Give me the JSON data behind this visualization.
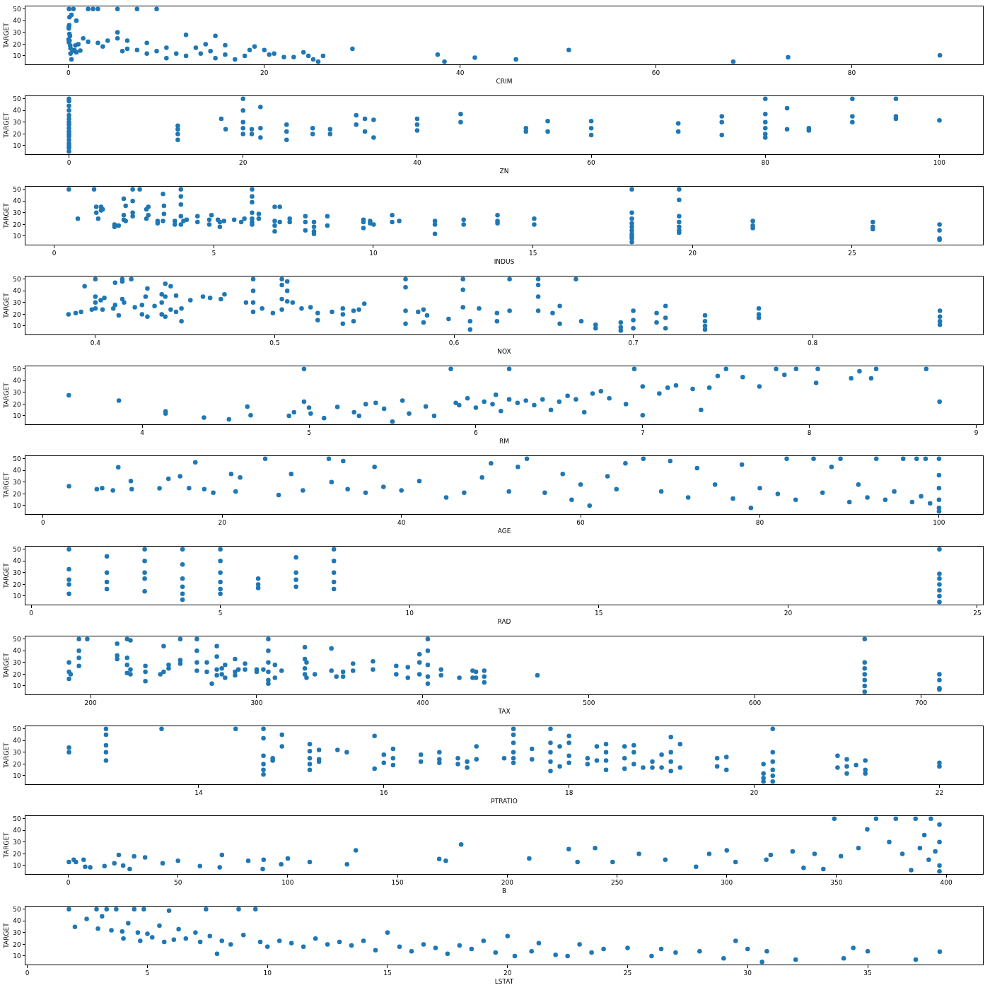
{
  "chart_data": [
    {
      "type": "scatter",
      "xlabel": "CRIM",
      "ylabel": "TARGET",
      "color": "#1f77b4",
      "marker": "circle",
      "xlim": [
        -4.4,
        93.4
      ],
      "xticks": [
        0,
        20,
        40,
        60,
        80
      ],
      "ylim": [
        2.75,
        52.25
      ],
      "yticks": [
        10,
        20,
        30,
        40,
        50
      ],
      "x": [
        0.01,
        0.03,
        0.03,
        0.03,
        0.07,
        0.09,
        0.1,
        0.15,
        0.2,
        0.17,
        0.6,
        0.7,
        0.05,
        0.5,
        0.3,
        0.1,
        0.8,
        0.2,
        0.4,
        0.8,
        0.3,
        1.2,
        1,
        1.5,
        2,
        2.5,
        3,
        2,
        3,
        3.5,
        4,
        5,
        5,
        5,
        5.5,
        6,
        6,
        7,
        7,
        8,
        8,
        9,
        9,
        10,
        10,
        11,
        12,
        12,
        13,
        13.5,
        14,
        14.5,
        15,
        15,
        16,
        16,
        17,
        18,
        18.5,
        19,
        20,
        20.5,
        21,
        22,
        23,
        24,
        24.5,
        25,
        25.5,
        26,
        29,
        37.7,
        38.4,
        41.5,
        45.7,
        51.1,
        67.9,
        73.5,
        89
      ],
      "values": [
        24,
        21.6,
        34.7,
        33.4,
        36.2,
        28.7,
        22.9,
        27.1,
        16.5,
        18.9,
        15,
        18.9,
        50,
        50,
        45,
        43,
        40,
        12,
        14,
        13,
        7,
        14.5,
        20,
        25,
        50,
        50,
        50,
        22,
        21,
        18,
        23,
        30,
        25,
        50,
        14,
        16,
        23,
        50,
        15,
        12,
        21,
        50,
        14,
        8,
        17,
        12,
        28,
        10,
        17,
        12,
        20,
        14,
        27,
        8,
        19,
        11,
        7,
        10,
        15,
        18,
        15,
        11,
        12,
        9,
        9,
        13,
        10,
        7,
        5,
        10,
        16,
        11,
        5,
        8.5,
        7,
        15,
        5,
        8.8,
        10.4
      ]
    },
    {
      "type": "scatter",
      "xlabel": "ZN",
      "ylabel": "TARGET",
      "color": "#1f77b4",
      "marker": "circle",
      "xlim": [
        -5,
        105
      ],
      "xticks": [
        0,
        20,
        40,
        60,
        80,
        100
      ],
      "ylim": [
        2.75,
        52.25
      ],
      "yticks": [
        10,
        20,
        30,
        40,
        50
      ],
      "x": [
        0,
        0,
        0,
        0,
        0,
        0,
        0,
        0,
        0,
        0,
        0,
        0,
        0,
        0,
        0,
        0,
        0,
        12.5,
        12.5,
        12.5,
        12.5,
        17.5,
        18,
        20,
        20,
        20,
        20,
        20,
        21,
        21,
        22,
        22,
        22,
        25,
        25,
        25,
        28,
        28,
        30,
        30,
        33,
        33,
        34,
        34,
        35,
        35,
        40,
        40,
        40,
        45,
        45,
        52.5,
        52.5,
        55,
        55,
        60,
        60,
        60,
        70,
        70,
        75,
        75,
        75,
        80,
        80,
        80,
        80,
        80,
        80,
        82.5,
        82.5,
        85,
        85,
        90,
        90,
        90,
        95,
        95,
        95,
        100
      ],
      "values": [
        5,
        8,
        10,
        12,
        15,
        18,
        20,
        22,
        25,
        28,
        30,
        33,
        36,
        40,
        44,
        48,
        50,
        15,
        20,
        24,
        27,
        33,
        24,
        20,
        25,
        30,
        40,
        50,
        20,
        24,
        17,
        25,
        43,
        15,
        22,
        28,
        20,
        25,
        20,
        24,
        28,
        36,
        22,
        33,
        17,
        32,
        23,
        28,
        33,
        30,
        37,
        22,
        25,
        22,
        31,
        19,
        25,
        31,
        22,
        29,
        19,
        30,
        35,
        17,
        20,
        25,
        30,
        37,
        50,
        24,
        42,
        23,
        25,
        30,
        35,
        50,
        33,
        35,
        50,
        31.6
      ]
    },
    {
      "type": "scatter",
      "xlabel": "INDUS",
      "ylabel": "TARGET",
      "color": "#1f77b4",
      "marker": "circle",
      "xlim": [
        -0.9,
        29.1
      ],
      "xticks": [
        0,
        5,
        10,
        15,
        20,
        25
      ],
      "ylim": [
        2.75,
        52.25
      ],
      "yticks": [
        10,
        20,
        30,
        40,
        50
      ],
      "x": [
        0.46,
        0.74,
        1.25,
        1.32,
        1.32,
        1.38,
        1.47,
        1.47,
        1.52,
        1.89,
        1.89,
        2.02,
        2.18,
        2.18,
        2.18,
        2.24,
        2.24,
        2.46,
        2.46,
        2.46,
        2.46,
        2.68,
        2.89,
        2.89,
        2.95,
        2.95,
        3.24,
        3.24,
        3.41,
        3.41,
        3.44,
        3.44,
        3.78,
        3.78,
        3.97,
        3.97,
        3.97,
        3.97,
        3.97,
        4.05,
        4.15,
        4.49,
        4.49,
        4.86,
        4.86,
        4.93,
        5.13,
        5.19,
        5.19,
        5.32,
        5.64,
        5.86,
        5.96,
        6.2,
        6.2,
        6.2,
        6.2,
        6.2,
        6.2,
        6.2,
        6.41,
        6.41,
        6.91,
        6.91,
        6.91,
        6.91,
        7.07,
        7.07,
        7.38,
        7.38,
        7.87,
        7.87,
        7.87,
        8.14,
        8.14,
        8.14,
        8.14,
        8.56,
        8.56,
        9.69,
        9.69,
        9.69,
        9.9,
        9.9,
        10.01,
        10.59,
        10.59,
        10.81,
        11.93,
        11.93,
        11.93,
        12.83,
        12.83,
        13.89,
        13.89,
        13.89,
        15.04,
        15.04,
        18.1,
        18.1,
        18.1,
        18.1,
        18.1,
        18.1,
        18.1,
        18.1,
        18.1,
        18.1,
        19.58,
        19.58,
        19.58,
        19.58,
        19.58,
        19.58,
        19.58,
        21.89,
        21.89,
        21.89,
        25.65,
        25.65,
        25.65,
        27.74,
        27.74,
        27.74,
        27.74
      ],
      "values": [
        50,
        25,
        50,
        35,
        30,
        25,
        32,
        35,
        33,
        20,
        18,
        19,
        42,
        28,
        24,
        36,
        23,
        50,
        40,
        30,
        27,
        50,
        33,
        25,
        28,
        35,
        21,
        23,
        46,
        23,
        36,
        29,
        20,
        23,
        50,
        44,
        37,
        27,
        20,
        23,
        24,
        27,
        22,
        24,
        20,
        28,
        24,
        22,
        18,
        23,
        24,
        22,
        25,
        50,
        44,
        39,
        30,
        25,
        22,
        20,
        25,
        29,
        35,
        23,
        19,
        14,
        35,
        22,
        22,
        25,
        27,
        22,
        15,
        22,
        18,
        14,
        12,
        27,
        19,
        24,
        22,
        17,
        21,
        23,
        20,
        28,
        22,
        23,
        23,
        20,
        12,
        24,
        20,
        28,
        23,
        21,
        25,
        20,
        5,
        8,
        10,
        12,
        15,
        18,
        21,
        25,
        30,
        50,
        50,
        41,
        27,
        22,
        18,
        15,
        13,
        23,
        19,
        17,
        22,
        18,
        16,
        20,
        15,
        8,
        7
      ]
    },
    {
      "type": "scatter",
      "xlabel": "NOX",
      "ylabel": "TARGET",
      "color": "#1f77b4",
      "marker": "circle",
      "xlim": [
        0.361,
        0.895
      ],
      "xticks": [
        0.4,
        0.5,
        0.6,
        0.7,
        0.8
      ],
      "ylim": [
        2.75,
        52.25
      ],
      "yticks": [
        10,
        20,
        30,
        40,
        50
      ],
      "x": [
        0.385,
        0.389,
        0.392,
        0.394,
        0.398,
        0.4,
        0.4,
        0.4,
        0.4,
        0.403,
        0.404,
        0.405,
        0.41,
        0.411,
        0.411,
        0.413,
        0.415,
        0.415,
        0.415,
        0.416,
        0.42,
        0.422,
        0.426,
        0.426,
        0.428,
        0.429,
        0.429,
        0.433,
        0.437,
        0.437,
        0.437,
        0.439,
        0.439,
        0.439,
        0.442,
        0.442,
        0.445,
        0.445,
        0.448,
        0.448,
        0.453,
        0.46,
        0.464,
        0.47,
        0.472,
        0.484,
        0.488,
        0.488,
        0.488,
        0.488,
        0.493,
        0.499,
        0.504,
        0.504,
        0.504,
        0.504,
        0.507,
        0.507,
        0.507,
        0.51,
        0.515,
        0.52,
        0.524,
        0.524,
        0.532,
        0.538,
        0.538,
        0.538,
        0.544,
        0.544,
        0.547,
        0.55,
        0.573,
        0.573,
        0.573,
        0.573,
        0.58,
        0.583,
        0.583,
        0.585,
        0.597,
        0.605,
        0.605,
        0.605,
        0.609,
        0.609,
        0.614,
        0.624,
        0.624,
        0.631,
        0.631,
        0.647,
        0.647,
        0.647,
        0.647,
        0.655,
        0.659,
        0.659,
        0.668,
        0.671,
        0.679,
        0.679,
        0.693,
        0.693,
        0.693,
        0.7,
        0.7,
        0.7,
        0.713,
        0.713,
        0.718,
        0.718,
        0.718,
        0.74,
        0.74,
        0.74,
        0.74,
        0.77,
        0.77,
        0.77,
        0.871,
        0.871,
        0.871,
        0.871
      ],
      "values": [
        20,
        21,
        22,
        44,
        24,
        50,
        35,
        30,
        25,
        32,
        24,
        34,
        25,
        47,
        28,
        19,
        50,
        48,
        33,
        30,
        50,
        26,
        28,
        20,
        35,
        42,
        18,
        27,
        37,
        30,
        20,
        46,
        35,
        18,
        44,
        24,
        36,
        22,
        25,
        14,
        32,
        35,
        34,
        33,
        37,
        30,
        50,
        40,
        30,
        22,
        25,
        21,
        50,
        45,
        33,
        24,
        48,
        40,
        31,
        30,
        25,
        26,
        21,
        15,
        22,
        25,
        20,
        12,
        23,
        14,
        24,
        29,
        50,
        43,
        23,
        12,
        22,
        24,
        13,
        19,
        16,
        50,
        41,
        26,
        7,
        14,
        25,
        21,
        14,
        50,
        23,
        50,
        45,
        35,
        23,
        21,
        27,
        12,
        50,
        14,
        11,
        8,
        13,
        9,
        6,
        23,
        15,
        8,
        21,
        13,
        27,
        17,
        8,
        19,
        14,
        10,
        7,
        25,
        20,
        17,
        23,
        18,
        14,
        11
      ]
    },
    {
      "type": "scatter",
      "xlabel": "RM",
      "ylabel": "TARGET",
      "color": "#1f77b4",
      "marker": "circle",
      "xlim": [
        3.3,
        9.04
      ],
      "xticks": [
        4,
        5,
        6,
        7,
        8,
        9
      ],
      "ylim": [
        2.75,
        52.25
      ],
      "yticks": [
        10,
        20,
        30,
        40,
        50
      ],
      "x": [
        3.56,
        3.86,
        4.14,
        4.14,
        4.37,
        4.52,
        4.63,
        4.65,
        4.88,
        4.91,
        4.97,
        4.97,
        5,
        5.01,
        5.09,
        5.17,
        5.27,
        5.3,
        5.34,
        5.4,
        5.45,
        5.5,
        5.56,
        5.6,
        5.7,
        5.75,
        5.85,
        5.88,
        5.9,
        5.95,
        6,
        6.05,
        6.1,
        6.12,
        6.15,
        6.2,
        6.2,
        6.25,
        6.3,
        6.35,
        6.4,
        6.45,
        6.5,
        6.55,
        6.6,
        6.65,
        6.7,
        6.75,
        6.8,
        6.9,
        6.95,
        7,
        7,
        7.1,
        7.15,
        7.2,
        7.3,
        7.35,
        7.4,
        7.45,
        7.5,
        7.6,
        7.7,
        7.8,
        7.85,
        7.92,
        8.04,
        8.05,
        8.25,
        8.3,
        8.37,
        8.4,
        8.7,
        8.78
      ],
      "values": [
        27.5,
        23,
        13.8,
        12,
        8.5,
        7,
        17.9,
        10.5,
        10,
        13,
        50,
        22,
        17,
        12,
        8,
        17.5,
        13,
        10,
        20,
        21,
        16,
        5,
        23,
        12,
        18,
        10,
        50,
        21,
        19,
        25,
        17,
        22,
        20,
        28,
        14,
        50,
        24,
        21,
        23,
        19,
        24,
        15,
        22,
        27,
        24,
        13,
        29,
        31,
        25,
        20,
        50,
        35,
        10.5,
        29,
        34,
        36,
        33,
        15,
        34,
        44,
        50,
        43,
        35,
        50,
        45,
        50,
        38,
        50,
        42,
        48,
        42,
        50,
        50,
        22
      ]
    },
    {
      "type": "scatter",
      "xlabel": "AGE",
      "ylabel": "TARGET",
      "color": "#1f77b4",
      "marker": "circle",
      "xlim": [
        -1.96,
        104.9
      ],
      "xticks": [
        0,
        20,
        40,
        60,
        80,
        100
      ],
      "ylim": [
        2.75,
        52.25
      ],
      "yticks": [
        10,
        20,
        30,
        40,
        50
      ],
      "x": [
        2.9,
        6,
        6.6,
        7.8,
        8.4,
        9.8,
        9.9,
        13,
        14,
        15.3,
        16.3,
        17,
        18,
        19,
        21,
        21.5,
        22,
        24.8,
        26.3,
        27.7,
        29,
        31.9,
        32.2,
        33.5,
        34,
        36,
        37,
        38,
        40,
        42,
        45,
        47,
        49,
        50,
        52,
        53,
        54,
        56,
        58,
        59,
        60,
        61,
        63,
        64,
        65,
        67,
        69,
        70,
        72,
        73,
        75,
        77,
        78,
        79,
        80,
        82,
        83,
        84,
        86,
        87,
        88,
        89,
        90,
        91,
        92,
        93,
        94,
        95,
        96,
        97,
        97.5,
        98,
        98.5,
        99,
        100,
        100,
        100,
        100,
        100,
        100
      ],
      "values": [
        26.6,
        24,
        25,
        23,
        42.8,
        31,
        24,
        24.8,
        33,
        35,
        25,
        47,
        24,
        21,
        37,
        22,
        34,
        50,
        19,
        37,
        23,
        50,
        30,
        48,
        24,
        21,
        43,
        26,
        23,
        31,
        17,
        21,
        34,
        46,
        22,
        43,
        50,
        21,
        37,
        15,
        28,
        10,
        35,
        24,
        46,
        50,
        22,
        48,
        17,
        42,
        28,
        16,
        45,
        8,
        25,
        20,
        50,
        15,
        50,
        21,
        43,
        50,
        13,
        28,
        17,
        50,
        15,
        22,
        50,
        13,
        50,
        18,
        50,
        12,
        50,
        36,
        25,
        15,
        8,
        5
      ]
    },
    {
      "type": "scatter",
      "xlabel": "RAD",
      "ylabel": "TARGET",
      "color": "#1f77b4",
      "marker": "circle",
      "xlim": [
        -0.15,
        25.15
      ],
      "xticks": [
        0,
        5,
        10,
        15,
        20,
        25
      ],
      "ylim": [
        2.75,
        52.25
      ],
      "yticks": [
        10,
        20,
        30,
        40,
        50
      ],
      "x": [
        1,
        1,
        1,
        1,
        1,
        2,
        2,
        2,
        2,
        3,
        3,
        3,
        3,
        3,
        4,
        4,
        4,
        4,
        4,
        4,
        5,
        5,
        5,
        5,
        5,
        5,
        6,
        6,
        6,
        7,
        7,
        7,
        7,
        8,
        8,
        8,
        8,
        8,
        24,
        24,
        24,
        24,
        24,
        24,
        24
      ],
      "values": [
        12,
        20,
        24,
        33,
        50,
        16,
        22,
        30,
        44,
        14,
        25,
        30,
        40,
        50,
        7,
        12,
        18,
        25,
        37,
        50,
        12,
        16,
        22,
        30,
        40,
        50,
        17,
        20,
        25,
        18,
        24,
        30,
        43,
        16,
        22,
        30,
        40,
        50,
        5,
        10,
        15,
        20,
        25,
        29,
        50
      ]
    },
    {
      "type": "scatter",
      "xlabel": "TAX",
      "ylabel": "TARGET",
      "color": "#1f77b4",
      "marker": "circle",
      "xlim": [
        160.8,
        737.2
      ],
      "xticks": [
        200,
        300,
        400,
        500,
        600,
        700
      ],
      "ylim": [
        2.75,
        52.25
      ],
      "yticks": [
        10,
        20,
        30,
        40,
        50
      ],
      "x": [
        187,
        187,
        187,
        188,
        193,
        193,
        193,
        193,
        198,
        216,
        216,
        216,
        222,
        222,
        222,
        222,
        224,
        224,
        224,
        233,
        233,
        233,
        242,
        244,
        244,
        247,
        247,
        254,
        254,
        254,
        264,
        264,
        264,
        264,
        270,
        270,
        273,
        276,
        276,
        276,
        276,
        279,
        279,
        281,
        281,
        287,
        287,
        287,
        289,
        293,
        293,
        300,
        300,
        304,
        307,
        307,
        307,
        307,
        307,
        307,
        311,
        311,
        315,
        329,
        329,
        329,
        329,
        330,
        330,
        335,
        345,
        345,
        348,
        352,
        352,
        358,
        358,
        370,
        370,
        384,
        384,
        391,
        391,
        398,
        398,
        398,
        403,
        403,
        403,
        403,
        403,
        411,
        411,
        422,
        430,
        430,
        432,
        432,
        437,
        437,
        437,
        469,
        666,
        666,
        666,
        666,
        666,
        666,
        666,
        711,
        711,
        711,
        711
      ],
      "values": [
        30,
        22,
        16,
        20,
        50,
        40,
        34,
        27,
        50,
        46,
        36,
        33,
        50,
        34,
        28,
        21,
        49,
        24,
        20,
        27,
        22,
        14,
        20,
        44,
        22,
        28,
        25,
        50,
        32,
        29,
        50,
        40,
        30,
        23,
        30,
        22,
        12,
        44,
        35,
        24,
        19,
        25,
        20,
        28,
        17,
        33,
        22,
        19,
        24,
        29,
        24,
        24,
        22,
        24,
        50,
        40,
        30,
        22,
        15,
        12,
        28,
        17,
        23,
        43,
        33,
        25,
        20,
        30,
        17,
        20,
        42,
        23,
        18,
        22,
        18,
        29,
        23,
        31,
        24,
        27,
        20,
        26,
        17,
        37,
        30,
        20,
        50,
        40,
        28,
        18,
        12,
        24,
        19,
        17,
        23,
        17,
        22,
        17,
        23,
        18,
        13,
        19,
        5,
        10,
        15,
        20,
        25,
        30,
        50,
        20,
        15,
        8,
        7
      ]
    },
    {
      "type": "scatter",
      "xlabel": "PTRATIO",
      "ylabel": "TARGET",
      "color": "#1f77b4",
      "marker": "circle",
      "xlim": [
        12.13,
        22.47
      ],
      "xticks": [
        14,
        16,
        18,
        20,
        22
      ],
      "ylim": [
        2.75,
        52.25
      ],
      "yticks": [
        10,
        20,
        30,
        40,
        50
      ],
      "x": [
        12.6,
        12.6,
        13,
        13,
        13,
        13,
        13,
        13.6,
        14.4,
        14.7,
        14.7,
        14.7,
        14.7,
        14.7,
        14.7,
        14.8,
        14.8,
        14.9,
        14.9,
        15.2,
        15.2,
        15.2,
        15.2,
        15.2,
        15.3,
        15.3,
        15.3,
        15.5,
        15.6,
        15.9,
        15.9,
        16,
        16,
        16.1,
        16.1,
        16.1,
        16.4,
        16.4,
        16.6,
        16.6,
        16.6,
        16.8,
        16.8,
        16.9,
        16.9,
        17,
        17,
        17.3,
        17.4,
        17.4,
        17.4,
        17.4,
        17.4,
        17.4,
        17.6,
        17.6,
        17.8,
        17.8,
        17.8,
        17.8,
        17.8,
        17.9,
        17.9,
        18,
        18,
        18,
        18,
        18.2,
        18.2,
        18.3,
        18.3,
        18.4,
        18.4,
        18.4,
        18.4,
        18.6,
        18.6,
        18.6,
        18.7,
        18.7,
        18.7,
        18.8,
        18.9,
        18.9,
        19,
        19,
        19.1,
        19.1,
        19.1,
        19.1,
        19.2,
        19.2,
        19.6,
        19.6,
        19.7,
        19.7,
        20.1,
        20.1,
        20.1,
        20.1,
        20.2,
        20.2,
        20.2,
        20.2,
        20.2,
        20.2,
        20.9,
        20.9,
        21,
        21,
        21,
        21.1,
        21.2,
        21.2,
        21.2,
        22,
        22
      ],
      "values": [
        34,
        30,
        50,
        45,
        36,
        30,
        23,
        50,
        50,
        50,
        42,
        27,
        20,
        15,
        11,
        23,
        25,
        45,
        35,
        37,
        31,
        25,
        20,
        15,
        32,
        24,
        22,
        32,
        30,
        44,
        16,
        28,
        21,
        33,
        25,
        19,
        28,
        22,
        30,
        24,
        21,
        25,
        20,
        22,
        17,
        35,
        24,
        25,
        50,
        45,
        38,
        30,
        25,
        21,
        33,
        24,
        50,
        38,
        30,
        22,
        14,
        35,
        18,
        44,
        38,
        27,
        21,
        25,
        20,
        35,
        23,
        37,
        30,
        23,
        15,
        35,
        25,
        16,
        36,
        30,
        20,
        17,
        22,
        17,
        28,
        17,
        43,
        30,
        22,
        14,
        37,
        17,
        25,
        18,
        26,
        15,
        20,
        12,
        8,
        5,
        50,
        30,
        22,
        15,
        10,
        5,
        27,
        17,
        24,
        18,
        12,
        19,
        23,
        15,
        12,
        21,
        18
      ]
    },
    {
      "type": "scatter",
      "xlabel": "B",
      "ylabel": "TARGET",
      "color": "#1f77b4",
      "marker": "circle",
      "xlim": [
        -19.5,
        416.7
      ],
      "xticks": [
        0,
        50,
        100,
        150,
        200,
        250,
        300,
        350,
        400
      ],
      "ylim": [
        2.75,
        52.25
      ],
      "yticks": [
        10,
        20,
        30,
        40,
        50
      ],
      "x": [
        0.3,
        2.5,
        3.5,
        7,
        7.7,
        10,
        16.5,
        21,
        23,
        25,
        28,
        30,
        35,
        43,
        50,
        60,
        69,
        70,
        82,
        88.6,
        89,
        97,
        100,
        110,
        127,
        131,
        169,
        172,
        179,
        210,
        228,
        232,
        240,
        248,
        260,
        272,
        286,
        292,
        300,
        304,
        318,
        320,
        330,
        335,
        340,
        344,
        349,
        352,
        360,
        364,
        368,
        374,
        377,
        380,
        384,
        386,
        388,
        390,
        392,
        393,
        395,
        396.9,
        396.9,
        396.9,
        396.9
      ],
      "values": [
        13,
        15,
        13,
        14.9,
        9,
        8.5,
        9.6,
        12,
        19,
        10,
        7,
        17.8,
        17,
        12,
        14,
        9.6,
        8.5,
        19,
        14,
        7,
        15,
        11,
        16,
        13,
        11,
        23,
        15.6,
        14,
        27.9,
        16,
        24,
        13,
        25,
        13,
        20,
        15,
        9,
        20,
        23,
        13,
        15,
        19,
        22,
        8,
        20,
        7,
        50,
        18,
        25,
        41,
        50,
        30,
        50,
        20,
        6,
        50,
        25,
        36,
        15,
        50,
        22,
        5,
        30,
        45,
        10
      ]
    },
    {
      "type": "scatter",
      "xlabel": "LSTAT",
      "ylabel": "TARGET",
      "color": "#1f77b4",
      "marker": "circle",
      "xlim": [
        -0.08,
        39.8
      ],
      "xticks": [
        0,
        5,
        10,
        15,
        20,
        25,
        30,
        35
      ],
      "ylim": [
        2.75,
        52.25
      ],
      "yticks": [
        10,
        20,
        30,
        40,
        50
      ],
      "x": [
        1.73,
        1.98,
        2.47,
        2.88,
        2.94,
        3.11,
        3.3,
        3.5,
        3.7,
        3.95,
        4,
        4.2,
        4.45,
        4.6,
        4.7,
        4.85,
        5,
        5.2,
        5.5,
        5.7,
        5.9,
        6.1,
        6.3,
        6.6,
        7,
        7.2,
        7.44,
        7.6,
        7.9,
        8.1,
        8.47,
        8.8,
        9,
        9.5,
        9.7,
        10,
        10.5,
        11,
        11.5,
        12,
        12.5,
        13,
        13.5,
        14,
        14.5,
        15,
        15.5,
        16,
        16.5,
        17,
        17.5,
        18,
        18.5,
        19,
        19.5,
        20,
        20.3,
        21,
        21.3,
        22,
        22.5,
        23,
        23.5,
        24,
        25,
        26,
        26.4,
        27,
        28,
        29,
        29.5,
        30,
        30.6,
        30.8,
        32,
        34,
        34.4,
        35,
        37,
        38
      ],
      "values": [
        50,
        34.9,
        41.7,
        50,
        33.4,
        44,
        50,
        32,
        50,
        31,
        25,
        38,
        50,
        30,
        23,
        50,
        29,
        26,
        36,
        22,
        48.8,
        24,
        33,
        25,
        30,
        22,
        50,
        27,
        12,
        23,
        20,
        50,
        28,
        50,
        22,
        18,
        23,
        21,
        18,
        25,
        20,
        22,
        19,
        23,
        15,
        30,
        18,
        14,
        20,
        17,
        12,
        19,
        16,
        23,
        13,
        27,
        10,
        14,
        21,
        11,
        10,
        20,
        13,
        16,
        17,
        10,
        16,
        13,
        14,
        8,
        23,
        16,
        5,
        14,
        7,
        8,
        17,
        14,
        7,
        13.8
      ]
    }
  ]
}
